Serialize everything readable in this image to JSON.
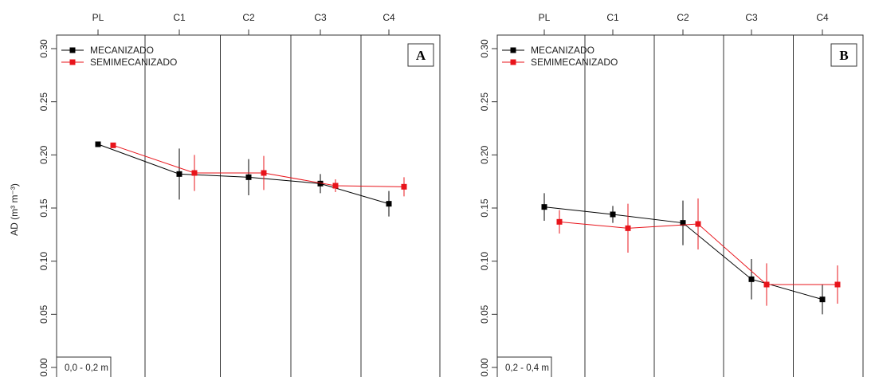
{
  "chart_data": [
    {
      "type": "line",
      "panel_label": "A",
      "depth_label": "0,0 - 0,2 m",
      "ylabel": "AD (m³ m⁻³)",
      "categories": [
        "PL",
        "C1",
        "C2",
        "C3",
        "C4"
      ],
      "ylim": [
        0.0,
        0.3
      ],
      "yticks": [
        "0.00",
        "0.05",
        "0.10",
        "0.15",
        "0.20",
        "0.25",
        "0.30"
      ],
      "legend_position": "top-left",
      "series": [
        {
          "name": "MECANIZADO",
          "color": "#000000",
          "values": [
            0.21,
            0.182,
            0.179,
            0.173,
            0.154
          ],
          "errors": [
            0.0,
            0.024,
            0.017,
            0.009,
            0.012
          ]
        },
        {
          "name": "SEMIMECANIZADO",
          "color": "#e8141b",
          "values": [
            0.209,
            0.183,
            0.183,
            0.171,
            0.17
          ],
          "errors": [
            0.0,
            0.017,
            0.016,
            0.006,
            0.009
          ]
        }
      ]
    },
    {
      "type": "line",
      "panel_label": "B",
      "depth_label": "0,2 - 0,4 m",
      "ylabel": "",
      "categories": [
        "PL",
        "C1",
        "C2",
        "C3",
        "C4"
      ],
      "ylim": [
        0.0,
        0.3
      ],
      "yticks": [
        "0.00",
        "0.05",
        "0.10",
        "0.15",
        "0.20",
        "0.25",
        "0.30"
      ],
      "legend_position": "top-left",
      "series": [
        {
          "name": "MECANIZADO",
          "color": "#000000",
          "values": [
            0.151,
            0.144,
            0.136,
            0.083,
            0.064
          ],
          "errors": [
            0.013,
            0.008,
            0.021,
            0.019,
            0.014
          ]
        },
        {
          "name": "SEMIMECANIZADO",
          "color": "#e8141b",
          "values": [
            0.137,
            0.131,
            0.135,
            0.078,
            0.078
          ],
          "errors": [
            0.011,
            0.023,
            0.024,
            0.02,
            0.018
          ]
        }
      ]
    }
  ]
}
